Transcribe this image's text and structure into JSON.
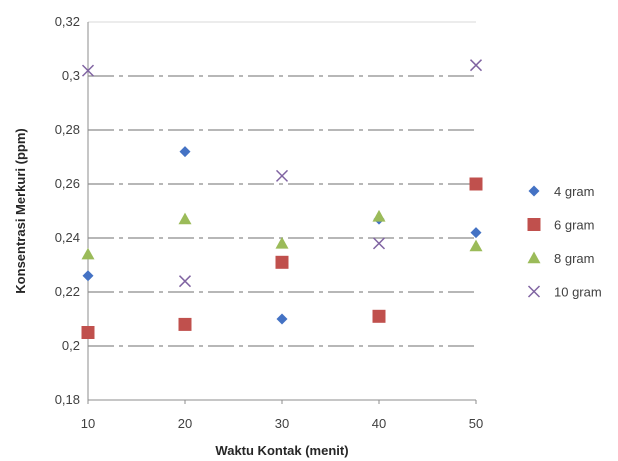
{
  "chart_data": {
    "type": "scatter",
    "title": "",
    "xlabel": "Waktu Kontak (menit)",
    "ylabel": "Konsentrasi Merkuri (ppm)",
    "xlim": [
      10,
      50
    ],
    "ylim": [
      0.18,
      0.32
    ],
    "x_ticks": [
      "10",
      "20",
      "30",
      "40",
      "50"
    ],
    "y_ticks": [
      "0,18",
      "0,2",
      "0,22",
      "0,24",
      "0,26",
      "0,28",
      "0,3",
      "0,32"
    ],
    "grid": "horizontal dash-dot",
    "legend_position": "right",
    "x": [
      10,
      20,
      30,
      40,
      50
    ],
    "series": [
      {
        "name": "4 gram",
        "marker": "diamond",
        "color": "#4472C4",
        "values": [
          0.226,
          0.272,
          0.21,
          0.247,
          0.242
        ]
      },
      {
        "name": "6 gram",
        "marker": "square",
        "color": "#C0504D",
        "values": [
          0.205,
          0.208,
          0.231,
          0.211,
          0.26
        ]
      },
      {
        "name": "8 gram",
        "marker": "triangle",
        "color": "#9BBB59",
        "values": [
          0.234,
          0.247,
          0.238,
          0.248,
          0.237
        ]
      },
      {
        "name": "10 gram",
        "marker": "x",
        "color": "#8064A2",
        "values": [
          0.302,
          0.224,
          0.263,
          0.238,
          0.304
        ]
      }
    ]
  }
}
